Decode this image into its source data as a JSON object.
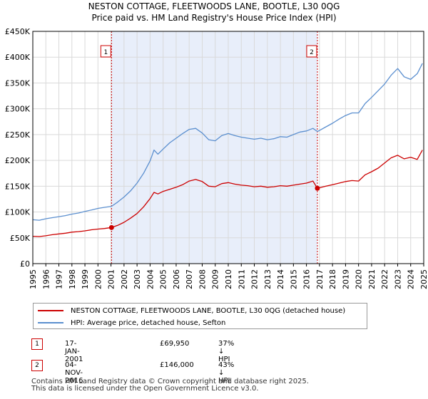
{
  "colors": {
    "property": "#cc0000",
    "hpi": "#5b8fcf",
    "band": "#e8eefa",
    "grid": "#d9d9d9"
  },
  "titles": {
    "line1": "NESTON COTTAGE, FLEETWOODS LANE, BOOTLE, L30 0QG",
    "line2": "Price paid vs. HM Land Registry's House Price Index (HPI)"
  },
  "legend": {
    "property_label": "NESTON COTTAGE, FLEETWOODS LANE, BOOTLE, L30 0QG (detached house)",
    "hpi_label": "HPI: Average price, detached house, Sefton"
  },
  "annotations": [
    {
      "num": "1",
      "date": "17-JAN-2001",
      "price": "£69,950",
      "hpi": "37% ↓ HPI"
    },
    {
      "num": "2",
      "date": "04-NOV-2016",
      "price": "£146,000",
      "hpi": "43% ↓ HPI"
    }
  ],
  "footer": {
    "line1": "Contains HM Land Registry data © Crown copyright and database right 2025.",
    "line2": "This data is licensed under the Open Government Licence v3.0."
  },
  "chart_data": {
    "type": "line",
    "title": "Price paid vs. HM Land Registry's House Price Index (HPI)",
    "xlabel": "",
    "ylabel": "",
    "xlim": [
      1995,
      2025
    ],
    "ylim": [
      0,
      450000
    ],
    "yticks": [
      0,
      50000,
      100000,
      150000,
      200000,
      250000,
      300000,
      350000,
      400000,
      450000
    ],
    "ytick_labels": [
      "£0",
      "£50K",
      "£100K",
      "£150K",
      "£200K",
      "£250K",
      "£300K",
      "£350K",
      "£400K",
      "£450K"
    ],
    "xticks": [
      "1995",
      "1996",
      "1997",
      "1998",
      "1999",
      "2000",
      "2001",
      "2002",
      "2003",
      "2004",
      "2005",
      "2006",
      "2007",
      "2008",
      "2009",
      "2010",
      "2011",
      "2012",
      "2013",
      "2014",
      "2015",
      "2016",
      "2017",
      "2018",
      "2019",
      "2020",
      "2021",
      "2022",
      "2023",
      "2024",
      "2025"
    ],
    "grid": true,
    "shaded_period": [
      2001.04,
      2016.84
    ],
    "series": [
      {
        "name": "NESTON COTTAGE, FLEETWOODS LANE, BOOTLE, L30 0QG (detached house)",
        "x": [
          1995.0,
          1995.5,
          1996.0,
          1996.5,
          1997.0,
          1997.5,
          1998.0,
          1998.5,
          1999.0,
          1999.5,
          2000.0,
          2000.5,
          2001.04,
          2001.5,
          2002.0,
          2002.5,
          2003.0,
          2003.5,
          2004.0,
          2004.3,
          2004.6,
          2005.0,
          2005.5,
          2006.0,
          2006.5,
          2007.0,
          2007.5,
          2008.0,
          2008.5,
          2009.0,
          2009.5,
          2010.0,
          2010.5,
          2011.0,
          2011.5,
          2012.0,
          2012.5,
          2013.0,
          2013.5,
          2014.0,
          2014.5,
          2015.0,
          2015.5,
          2016.0,
          2016.5,
          2016.84,
          2017.0,
          2017.5,
          2018.0,
          2018.5,
          2019.0,
          2019.5,
          2020.0,
          2020.5,
          2021.0,
          2021.5,
          2022.0,
          2022.5,
          2023.0,
          2023.5,
          2024.0,
          2024.5,
          2024.9
        ],
        "values": [
          53000,
          52500,
          54000,
          56000,
          57500,
          59000,
          61000,
          62000,
          63500,
          65500,
          67000,
          68000,
          69950,
          74000,
          80000,
          88000,
          97000,
          110000,
          126000,
          138000,
          135000,
          140000,
          144000,
          148000,
          153000,
          160000,
          163000,
          159000,
          150000,
          149000,
          155000,
          157000,
          154000,
          152000,
          151000,
          149000,
          150000,
          148000,
          149000,
          151000,
          150000,
          152000,
          154000,
          156000,
          160000,
          146000,
          147000,
          150000,
          153000,
          156000,
          159000,
          161000,
          160000,
          172000,
          178000,
          185000,
          195000,
          205000,
          210000,
          203000,
          206000,
          202000,
          220000
        ]
      },
      {
        "name": "HPI: Average price, detached house, Sefton",
        "x": [
          1995.0,
          1995.5,
          1996.0,
          1996.5,
          1997.0,
          1997.5,
          1998.0,
          1998.5,
          1999.0,
          1999.5,
          2000.0,
          2000.5,
          2001.04,
          2001.5,
          2002.0,
          2002.5,
          2003.0,
          2003.5,
          2004.0,
          2004.3,
          2004.6,
          2005.0,
          2005.5,
          2006.0,
          2006.5,
          2007.0,
          2007.5,
          2008.0,
          2008.5,
          2009.0,
          2009.5,
          2010.0,
          2010.5,
          2011.0,
          2011.5,
          2012.0,
          2012.5,
          2013.0,
          2013.5,
          2014.0,
          2014.5,
          2015.0,
          2015.5,
          2016.0,
          2016.5,
          2016.84,
          2017.0,
          2017.5,
          2018.0,
          2018.5,
          2019.0,
          2019.5,
          2020.0,
          2020.5,
          2021.0,
          2021.5,
          2022.0,
          2022.5,
          2023.0,
          2023.5,
          2024.0,
          2024.5,
          2024.9
        ],
        "values": [
          85000,
          84000,
          87000,
          89000,
          91000,
          93000,
          96000,
          98000,
          101000,
          104000,
          107000,
          109000,
          111000,
          119000,
          129000,
          141000,
          156000,
          175000,
          199000,
          220000,
          212000,
          222000,
          234000,
          243000,
          252000,
          260000,
          262000,
          253000,
          240000,
          238000,
          248000,
          252000,
          248000,
          245000,
          243000,
          241000,
          243000,
          240000,
          242000,
          246000,
          245000,
          250000,
          255000,
          257000,
          262000,
          256000,
          258000,
          265000,
          272000,
          280000,
          287000,
          292000,
          292000,
          310000,
          322000,
          335000,
          348000,
          365000,
          378000,
          362000,
          357000,
          368000,
          388000
        ]
      }
    ],
    "sales": [
      {
        "label": "1",
        "x": 2001.04,
        "y": 69950
      },
      {
        "label": "2",
        "x": 2016.84,
        "y": 146000
      }
    ]
  }
}
